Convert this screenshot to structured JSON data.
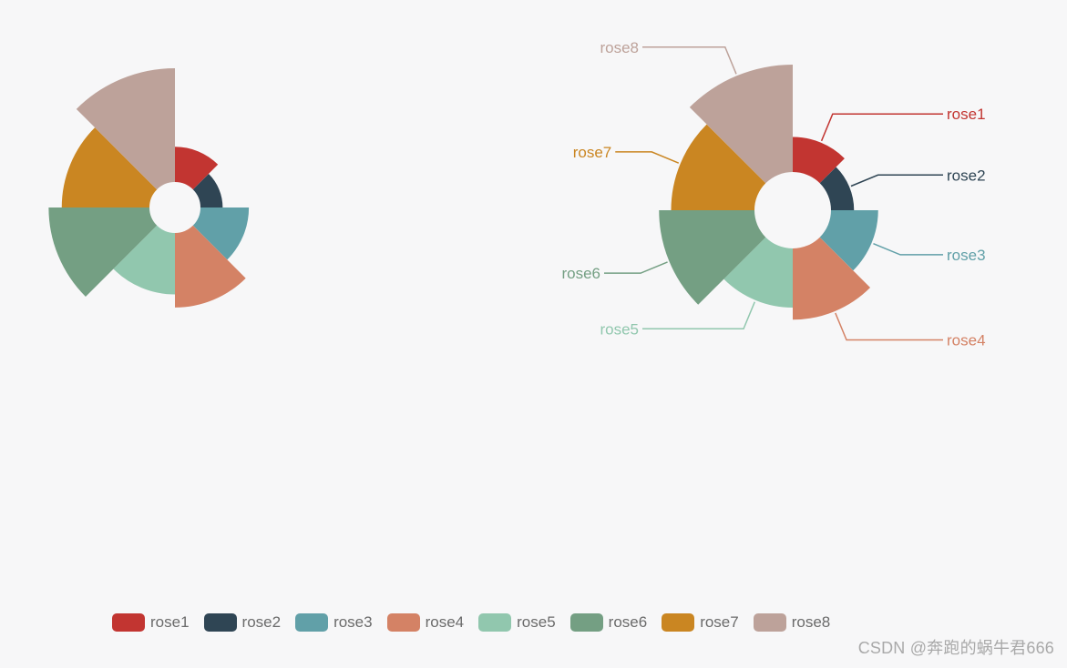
{
  "chart_data": [
    {
      "type": "pie",
      "variant": "nightingale-rose-radius",
      "categories": [
        "rose1",
        "rose2",
        "rose3",
        "rose4",
        "rose5",
        "rose6",
        "rose7",
        "rose8"
      ],
      "values": [
        10,
        5,
        15,
        25,
        20,
        35,
        30,
        40
      ],
      "labels_shown": false
    },
    {
      "type": "pie",
      "variant": "nightingale-rose-area",
      "categories": [
        "rose1",
        "rose2",
        "rose3",
        "rose4",
        "rose5",
        "rose6",
        "rose7",
        "rose8"
      ],
      "values": [
        10,
        5,
        15,
        25,
        20,
        35,
        30,
        40
      ],
      "labels_shown": true,
      "label_color_matches_series": true
    }
  ],
  "legend": {
    "items": [
      {
        "label": "rose1",
        "color": "#c23531"
      },
      {
        "label": "rose2",
        "color": "#2f4554"
      },
      {
        "label": "rose3",
        "color": "#61a0a8"
      },
      {
        "label": "rose4",
        "color": "#d48265"
      },
      {
        "label": "rose5",
        "color": "#91c7ae"
      },
      {
        "label": "rose6",
        "color": "#749f83"
      },
      {
        "label": "rose7",
        "color": "#ca8622"
      },
      {
        "label": "rose8",
        "color": "#bda29a"
      }
    ],
    "placement": "bottom"
  },
  "watermark": "CSDN @奔跑的蜗牛君666"
}
